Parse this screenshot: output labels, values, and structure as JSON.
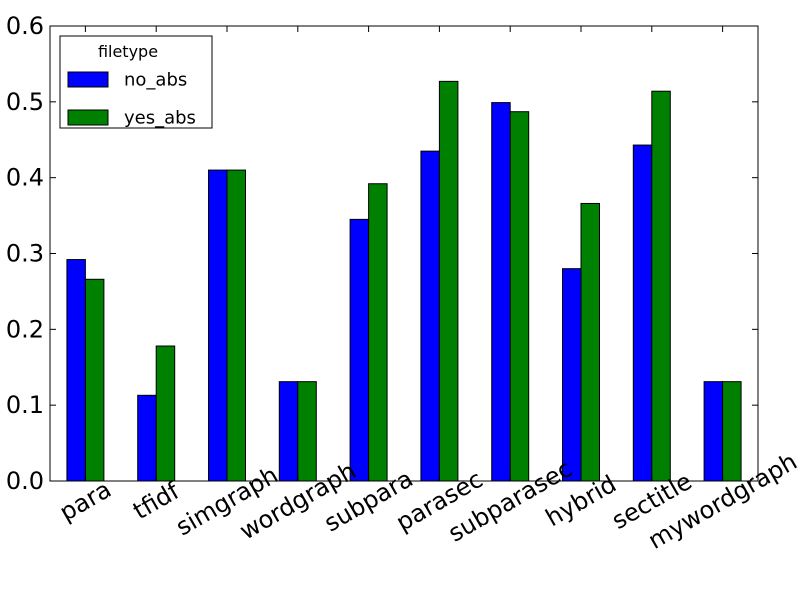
{
  "chart_data": {
    "type": "bar",
    "categories": [
      "para",
      "tfidf",
      "simgraph",
      "wordgraph",
      "subpara",
      "parasec",
      "subparasec",
      "hybrid",
      "sectitle",
      "mywordgraph"
    ],
    "series": [
      {
        "name": "no_abs",
        "color": "#0000ff",
        "values": [
          0.292,
          0.113,
          0.41,
          0.131,
          0.345,
          0.435,
          0.499,
          0.28,
          0.443,
          0.131
        ]
      },
      {
        "name": "yes_abs",
        "color": "#008000",
        "values": [
          0.266,
          0.178,
          0.41,
          0.131,
          0.392,
          0.527,
          0.487,
          0.366,
          0.514,
          0.131
        ]
      }
    ],
    "title": "",
    "xlabel": "",
    "ylabel": "",
    "ylim": [
      0,
      0.6
    ],
    "yticks": [
      "0.0",
      "0.1",
      "0.2",
      "0.3",
      "0.4",
      "0.5",
      "0.6"
    ],
    "legend": {
      "title": "filetype",
      "placement": "top-left"
    },
    "grid": false
  }
}
